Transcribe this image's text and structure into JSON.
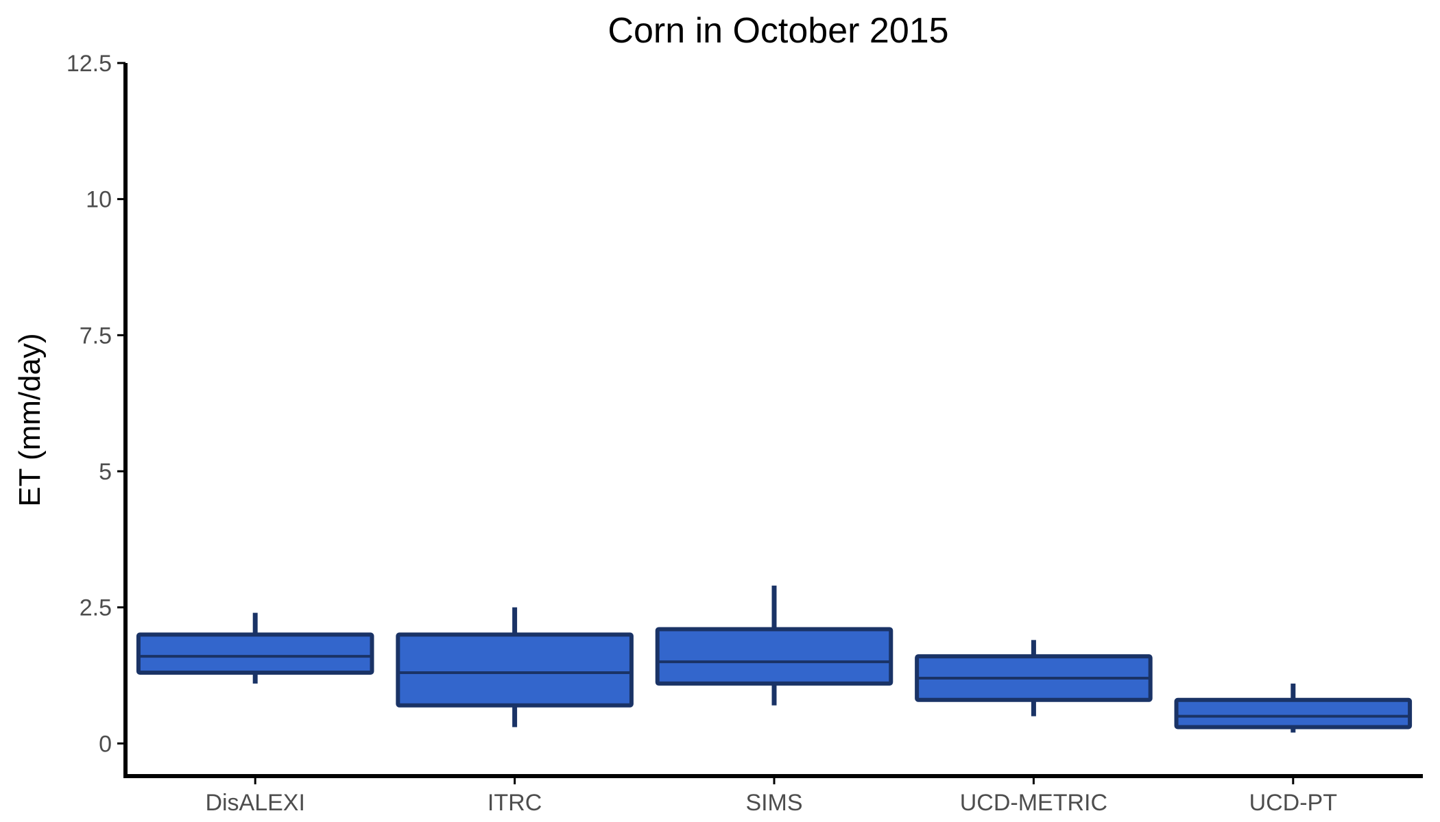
{
  "chart_data": {
    "type": "boxplot",
    "title": "Corn in October 2015",
    "xlabel": "",
    "ylabel": "ET (mm/day)",
    "ylim": [
      -0.6,
      12.5
    ],
    "yticks": [
      0,
      2.5,
      5,
      7.5,
      10,
      12.5
    ],
    "ytick_labels": [
      "0",
      "2.5",
      "5",
      "7.5",
      "10",
      "12.5"
    ],
    "categories": [
      "DisALEXI",
      "ITRC",
      "SIMS",
      "UCD-METRIC",
      "UCD-PT"
    ],
    "boxes": [
      {
        "category": "DisALEXI",
        "whisker_low": 1.1,
        "q1": 1.3,
        "median": 1.6,
        "q3": 2.0,
        "whisker_high": 2.4
      },
      {
        "category": "ITRC",
        "whisker_low": 0.3,
        "q1": 0.7,
        "median": 1.3,
        "q3": 2.0,
        "whisker_high": 2.5
      },
      {
        "category": "SIMS",
        "whisker_low": 0.7,
        "q1": 1.1,
        "median": 1.5,
        "q3": 2.1,
        "whisker_high": 2.9
      },
      {
        "category": "UCD-METRIC",
        "whisker_low": 0.5,
        "q1": 0.8,
        "median": 1.2,
        "q3": 1.6,
        "whisker_high": 1.9
      },
      {
        "category": "UCD-PT",
        "whisker_low": 0.2,
        "q1": 0.3,
        "median": 0.5,
        "q3": 0.8,
        "whisker_high": 1.1
      }
    ],
    "colors": {
      "box_fill": "#3366cc",
      "box_stroke": "#1a3366",
      "axis": "#000000",
      "tick_label": "#4d4d4d"
    },
    "grid": false,
    "legend": "none"
  }
}
